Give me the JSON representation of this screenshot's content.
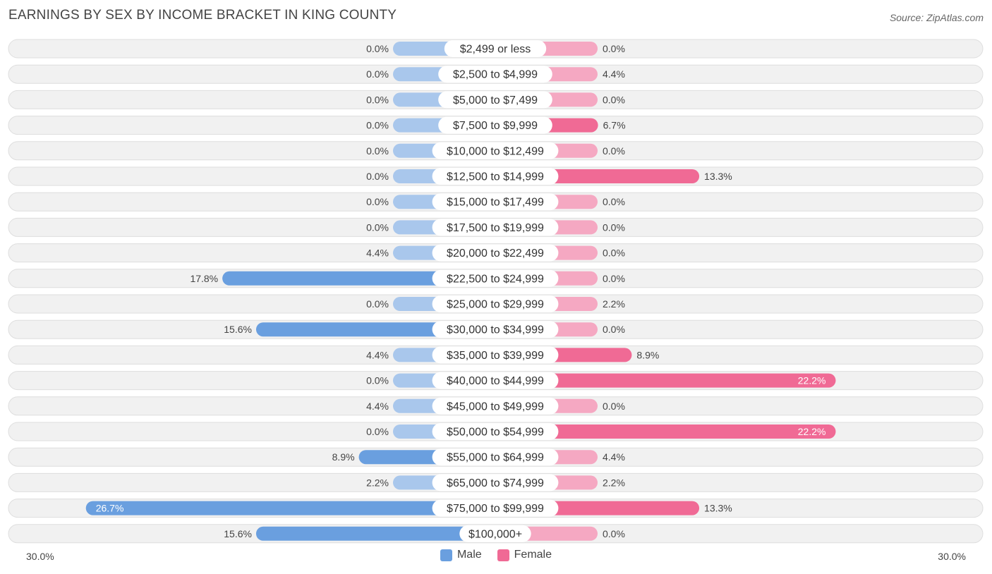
{
  "header": {
    "title": "EARNINGS BY SEX BY INCOME BRACKET IN KING COUNTY",
    "source": "Source: ZipAtlas.com"
  },
  "colors": {
    "male_strong": "#6a9fdf",
    "male_light": "#a9c7ec",
    "female_strong": "#f06a95",
    "female_light": "#f5a8c2",
    "row_bg": "#f1f1f1",
    "row_border": "#dedede"
  },
  "chart_data": {
    "type": "bar",
    "orientation": "horizontal-diverging",
    "title": "EARNINGS BY SEX BY INCOME BRACKET IN KING COUNTY",
    "categories": [
      "$2,499 or less",
      "$2,500 to $4,999",
      "$5,000 to $7,499",
      "$7,500 to $9,999",
      "$10,000 to $12,499",
      "$12,500 to $14,999",
      "$15,000 to $17,499",
      "$17,500 to $19,999",
      "$20,000 to $22,499",
      "$22,500 to $24,999",
      "$25,000 to $29,999",
      "$30,000 to $34,999",
      "$35,000 to $39,999",
      "$40,000 to $44,999",
      "$45,000 to $49,999",
      "$50,000 to $54,999",
      "$55,000 to $64,999",
      "$65,000 to $74,999",
      "$75,000 to $99,999",
      "$100,000+"
    ],
    "series": [
      {
        "name": "Male",
        "values": [
          0.0,
          0.0,
          0.0,
          0.0,
          0.0,
          0.0,
          0.0,
          0.0,
          4.4,
          17.8,
          0.0,
          15.6,
          4.4,
          0.0,
          4.4,
          0.0,
          8.9,
          2.2,
          26.7,
          15.6
        ],
        "labels": [
          "0.0%",
          "0.0%",
          "0.0%",
          "0.0%",
          "0.0%",
          "0.0%",
          "0.0%",
          "0.0%",
          "4.4%",
          "17.8%",
          "0.0%",
          "15.6%",
          "4.4%",
          "0.0%",
          "4.4%",
          "0.0%",
          "8.9%",
          "2.2%",
          "26.7%",
          "15.6%"
        ]
      },
      {
        "name": "Female",
        "values": [
          0.0,
          4.4,
          0.0,
          6.7,
          0.0,
          13.3,
          0.0,
          0.0,
          0.0,
          0.0,
          2.2,
          0.0,
          8.9,
          22.2,
          0.0,
          22.2,
          4.4,
          2.2,
          13.3,
          0.0
        ],
        "labels": [
          "0.0%",
          "4.4%",
          "0.0%",
          "6.7%",
          "0.0%",
          "13.3%",
          "0.0%",
          "0.0%",
          "0.0%",
          "0.0%",
          "2.2%",
          "0.0%",
          "8.9%",
          "22.2%",
          "0.0%",
          "22.2%",
          "4.4%",
          "2.2%",
          "13.3%",
          "0.0%"
        ]
      }
    ],
    "xlim": [
      -30,
      30
    ],
    "axis_labels": {
      "left": "30.0%",
      "right": "30.0%"
    },
    "legend": [
      "Male",
      "Female"
    ],
    "legend_position": "bottom-center"
  }
}
